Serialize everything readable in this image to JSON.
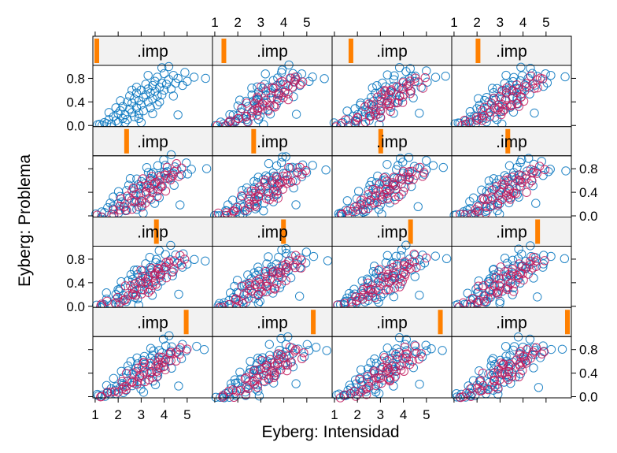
{
  "chart_data": {
    "type": "scatter",
    "layout": {
      "rows": 4,
      "cols": 4
    },
    "xlabel": "Eyberg: Intensidad",
    "ylabel": "Eyberg: Problema",
    "strip_label": ".imp",
    "xlim": [
      0.9,
      6.1
    ],
    "ylim": [
      -0.02,
      1.02
    ],
    "x_ticks": [
      1,
      2,
      3,
      4,
      5
    ],
    "y_ticks": [
      0.0,
      0.4,
      0.8
    ],
    "y_tick_labels": [
      "0.0",
      "0.4",
      "0.8"
    ],
    "imp_range": [
      0,
      15
    ],
    "series_colors": {
      "observed": "#0072bd",
      "imputed": "#c2185b",
      "strip_marker": "#ff8000"
    },
    "panels": [
      {
        "imp": 0,
        "imputed": false
      },
      {
        "imp": 1,
        "imputed": true
      },
      {
        "imp": 2,
        "imputed": true
      },
      {
        "imp": 3,
        "imputed": true
      },
      {
        "imp": 4,
        "imputed": true
      },
      {
        "imp": 5,
        "imputed": true
      },
      {
        "imp": 6,
        "imputed": true
      },
      {
        "imp": 7,
        "imputed": true
      },
      {
        "imp": 8,
        "imputed": true
      },
      {
        "imp": 9,
        "imputed": true
      },
      {
        "imp": 10,
        "imputed": true
      },
      {
        "imp": 11,
        "imputed": true
      },
      {
        "imp": 12,
        "imputed": true
      },
      {
        "imp": 13,
        "imputed": true
      },
      {
        "imp": 14,
        "imputed": true
      },
      {
        "imp": 15,
        "imputed": true
      }
    ],
    "observed_points": [
      [
        1.1,
        0.01
      ],
      [
        1.2,
        0.02
      ],
      [
        1.3,
        0.0
      ],
      [
        1.4,
        0.05
      ],
      [
        1.5,
        0.03
      ],
      [
        1.6,
        0.1
      ],
      [
        1.7,
        0.02
      ],
      [
        1.8,
        0.15
      ],
      [
        1.9,
        0.08
      ],
      [
        2.0,
        0.2
      ],
      [
        2.0,
        0.05
      ],
      [
        2.1,
        0.25
      ],
      [
        2.2,
        0.12
      ],
      [
        2.2,
        0.32
      ],
      [
        2.3,
        0.18
      ],
      [
        2.4,
        0.4
      ],
      [
        2.4,
        0.1
      ],
      [
        2.5,
        0.28
      ],
      [
        2.5,
        0.5
      ],
      [
        2.6,
        0.22
      ],
      [
        2.6,
        0.38
      ],
      [
        2.7,
        0.45
      ],
      [
        2.7,
        0.15
      ],
      [
        2.8,
        0.3
      ],
      [
        2.8,
        0.55
      ],
      [
        2.9,
        0.42
      ],
      [
        2.9,
        0.2
      ],
      [
        3.0,
        0.35
      ],
      [
        3.0,
        0.6
      ],
      [
        3.1,
        0.48
      ],
      [
        3.1,
        0.25
      ],
      [
        3.2,
        0.52
      ],
      [
        3.2,
        0.7
      ],
      [
        3.3,
        0.4
      ],
      [
        3.3,
        0.62
      ],
      [
        3.4,
        0.3
      ],
      [
        3.4,
        0.55
      ],
      [
        3.5,
        0.68
      ],
      [
        3.5,
        0.45
      ],
      [
        3.6,
        0.75
      ],
      [
        3.6,
        0.58
      ],
      [
        3.7,
        0.5
      ],
      [
        3.7,
        0.82
      ],
      [
        3.8,
        0.65
      ],
      [
        3.8,
        0.4
      ],
      [
        3.9,
        0.72
      ],
      [
        4.0,
        0.6
      ],
      [
        4.0,
        0.88
      ],
      [
        4.1,
        0.7
      ],
      [
        4.2,
        0.78
      ],
      [
        4.3,
        0.62
      ],
      [
        4.4,
        0.85
      ],
      [
        4.5,
        0.72
      ],
      [
        4.6,
        0.8
      ],
      [
        4.8,
        0.68
      ],
      [
        5.0,
        0.75
      ],
      [
        5.3,
        0.82
      ],
      [
        5.8,
        0.8
      ],
      [
        3.9,
        0.98
      ],
      [
        4.2,
        1.0
      ],
      [
        2.9,
        0.12
      ],
      [
        4.6,
        0.18
      ],
      [
        1.9,
        0.3
      ],
      [
        2.3,
        0.05
      ],
      [
        3.5,
        0.2
      ],
      [
        2.8,
        0.65
      ],
      [
        3.3,
        0.85
      ],
      [
        3.0,
        0.05
      ],
      [
        2.6,
        0.6
      ],
      [
        3.7,
        0.35
      ],
      [
        4.4,
        0.5
      ],
      [
        2.1,
        0.42
      ],
      [
        3.9,
        0.52
      ],
      [
        4.9,
        0.9
      ],
      [
        1.6,
        0.22
      ]
    ],
    "imputed_points": [
      [
        1.2,
        0.0
      ],
      [
        1.4,
        0.02
      ],
      [
        1.6,
        0.05
      ],
      [
        1.8,
        0.03
      ],
      [
        2.0,
        0.1
      ],
      [
        2.1,
        0.14
      ],
      [
        2.3,
        0.08
      ],
      [
        2.4,
        0.2
      ],
      [
        2.5,
        0.16
      ],
      [
        2.6,
        0.25
      ],
      [
        2.7,
        0.3
      ],
      [
        2.8,
        0.22
      ],
      [
        2.9,
        0.35
      ],
      [
        3.0,
        0.28
      ],
      [
        3.1,
        0.4
      ],
      [
        3.2,
        0.32
      ],
      [
        3.3,
        0.45
      ],
      [
        3.4,
        0.38
      ],
      [
        3.5,
        0.5
      ],
      [
        3.6,
        0.42
      ],
      [
        3.7,
        0.55
      ],
      [
        3.8,
        0.48
      ],
      [
        3.9,
        0.6
      ],
      [
        4.0,
        0.52
      ],
      [
        4.1,
        0.65
      ],
      [
        4.2,
        0.58
      ],
      [
        4.3,
        0.7
      ],
      [
        4.4,
        0.62
      ],
      [
        4.5,
        0.75
      ],
      [
        4.7,
        0.68
      ],
      [
        4.9,
        0.78
      ],
      [
        2.2,
        0.3
      ],
      [
        2.6,
        0.4
      ],
      [
        3.0,
        0.5
      ],
      [
        3.4,
        0.6
      ],
      [
        3.8,
        0.68
      ],
      [
        4.2,
        0.8
      ],
      [
        2.9,
        0.18
      ],
      [
        3.3,
        0.26
      ],
      [
        3.7,
        0.34
      ],
      [
        4.1,
        0.44
      ],
      [
        2.4,
        0.35
      ],
      [
        3.2,
        0.55
      ],
      [
        3.6,
        0.62
      ],
      [
        4.6,
        0.85
      ],
      [
        1.9,
        0.12
      ],
      [
        2.8,
        0.45
      ],
      [
        3.5,
        0.3
      ],
      [
        4.0,
        0.72
      ],
      [
        3.1,
        0.62
      ]
    ]
  }
}
